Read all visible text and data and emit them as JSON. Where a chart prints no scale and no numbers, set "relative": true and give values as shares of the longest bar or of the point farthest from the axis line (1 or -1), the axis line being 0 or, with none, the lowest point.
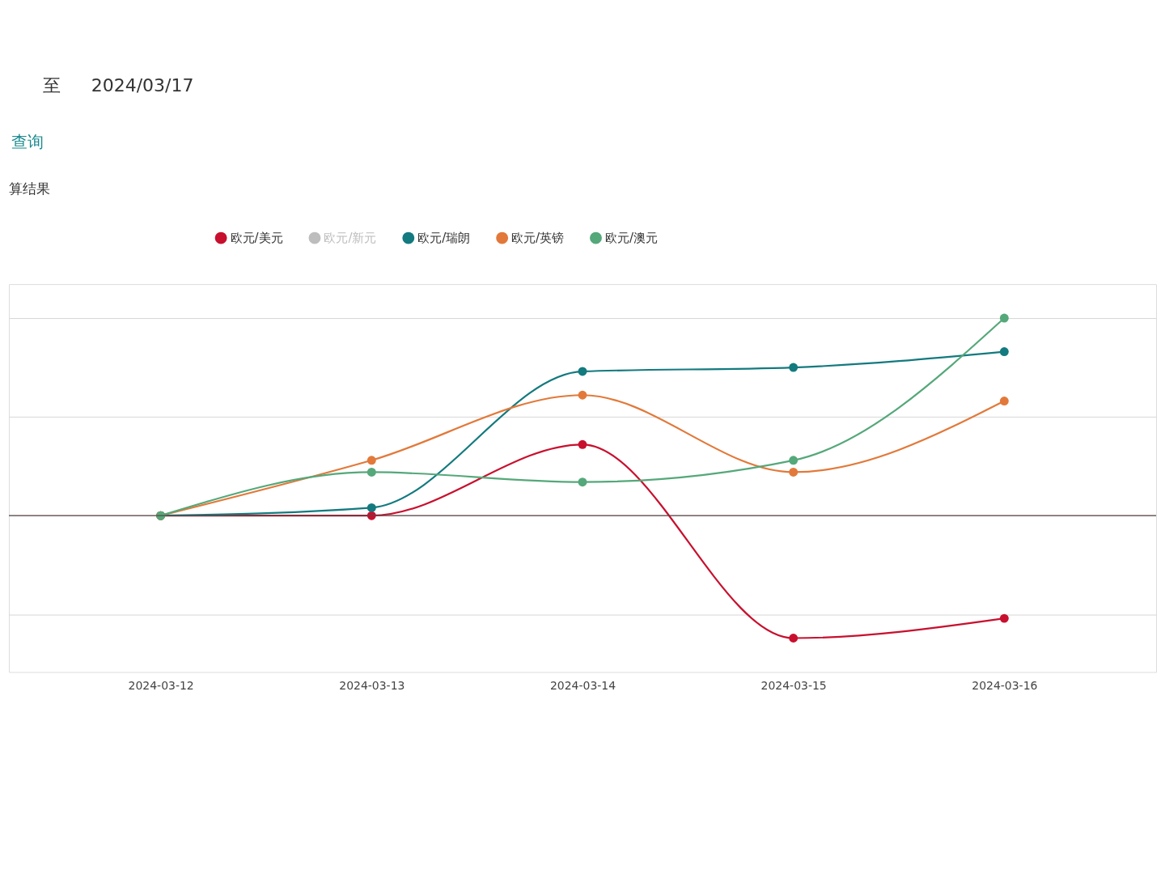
{
  "chart_data": {
    "type": "line",
    "relative": true,
    "categories": [
      "2024-03-12",
      "2024-03-13",
      "2024-03-14",
      "2024-03-15",
      "2024-03-16"
    ],
    "series": [
      {
        "name": "欧元/美元",
        "color": "#c8102e",
        "values": [
          0,
          0,
          0.36,
          -0.62,
          -0.52
        ]
      },
      {
        "name": "欧元/新元",
        "color": "#bdbdbd",
        "values": [
          null,
          null,
          null,
          null,
          null
        ]
      },
      {
        "name": "欧元/瑞朗",
        "color": "#137a7f",
        "values": [
          0,
          0.04,
          0.73,
          0.75,
          0.83
        ]
      },
      {
        "name": "欧元/英镑",
        "color": "#e2793a",
        "values": [
          0,
          0.28,
          0.61,
          0.22,
          0.58
        ]
      },
      {
        "name": "欧元/澳元",
        "color": "#55a87a",
        "values": [
          0,
          0.22,
          0.17,
          0.28,
          1
        ]
      }
    ],
    "legend": "top",
    "grid": "y",
    "marker": "circle",
    "line_style": "solid",
    "annotations": [
      "至",
      "2024/03/17",
      "查询",
      "算结果"
    ]
  }
}
